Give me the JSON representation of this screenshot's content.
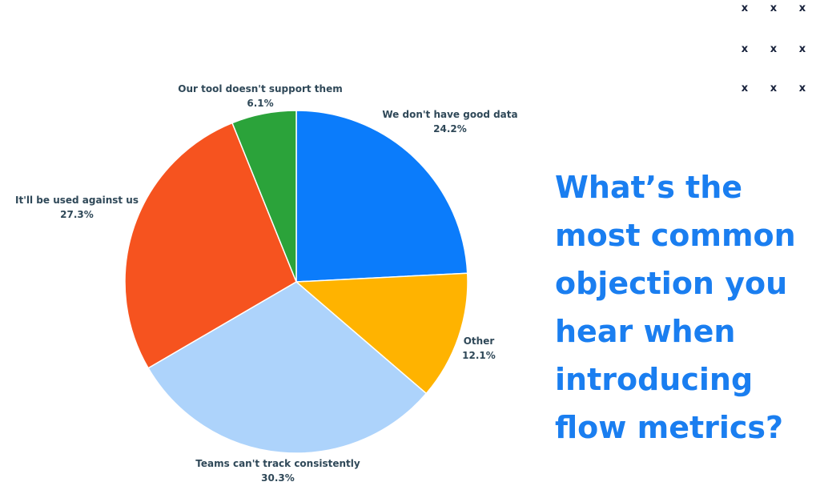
{
  "chart_data": {
    "type": "pie",
    "title": "What’s the most common objection you hear when introducing flow metrics?",
    "title_lines": [
      "What’s the",
      "most common",
      "objection you",
      "hear when",
      "introducing",
      "flow metrics?"
    ],
    "slices": [
      {
        "label": "We don't have good data",
        "value": 24.2,
        "value_label": "24.2%",
        "color": "#0b7cfb"
      },
      {
        "label": "Other",
        "value": 12.1,
        "value_label": "12.1%",
        "color": "#ffb300"
      },
      {
        "label": "Teams can't track consistently",
        "value": 30.3,
        "value_label": "30.3%",
        "color": "#add3fb"
      },
      {
        "label": "It'll be used against us",
        "value": 27.3,
        "value_label": "27.3%",
        "color": "#f6531f"
      },
      {
        "label": "Our tool doesn't support them",
        "value": 6.1,
        "value_label": "6.1%",
        "color": "#2ba33a"
      }
    ],
    "legend": "none"
  },
  "decoration": {
    "mark": "x",
    "rows": 3,
    "cols": 3,
    "color": "#16203a"
  },
  "colors": {
    "title": "#1a7ef0",
    "label_text": "#2f4858"
  }
}
